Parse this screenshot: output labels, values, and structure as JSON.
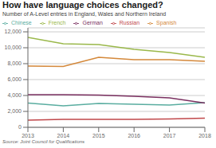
{
  "chart_data": {
    "type": "line",
    "title": "How have language choices changed?",
    "subtitle": "Number of A-Level entries in England, Wales and Northern Ireland",
    "source": "Source: Joint Council for Qualifications",
    "x": [
      2013,
      2014,
      2015,
      2016,
      2017,
      2018
    ],
    "series": [
      {
        "name": "Chinese",
        "color": "#5aada0",
        "values": [
          3050,
          2700,
          3000,
          2900,
          2800,
          3100
        ]
      },
      {
        "name": "Russian",
        "color": "#c0474a",
        "values": [
          900,
          1000,
          1000,
          1000,
          1050,
          1150
        ]
      },
      {
        "name": "French",
        "color": "#9ab84a",
        "values": [
          11300,
          10500,
          10400,
          9800,
          9400,
          8800
        ]
      },
      {
        "name": "German",
        "color": "#7a3060",
        "values": [
          4100,
          4100,
          4050,
          3900,
          3700,
          3050
        ]
      },
      {
        "name": "Spanish",
        "color": "#d4883a",
        "values": [
          7700,
          7650,
          8800,
          8500,
          8500,
          8300
        ]
      }
    ],
    "xlim": [
      2013,
      2018
    ],
    "xticks": [
      2013,
      2014,
      2015,
      2016,
      2017,
      2018
    ],
    "ylim": [
      0,
      12500
    ],
    "yticks": [
      0,
      {
        "value": 2000,
        "label": "2,000"
      },
      {
        "value": 4000,
        "label": "4,000"
      },
      {
        "value": 6000,
        "label": "6,000"
      },
      {
        "value": 8000,
        "label": "8,000"
      },
      {
        "value": 10000,
        "label": "10,000"
      },
      {
        "value": 12000,
        "label": "12,000"
      }
    ],
    "grid": true,
    "legend": "top"
  }
}
